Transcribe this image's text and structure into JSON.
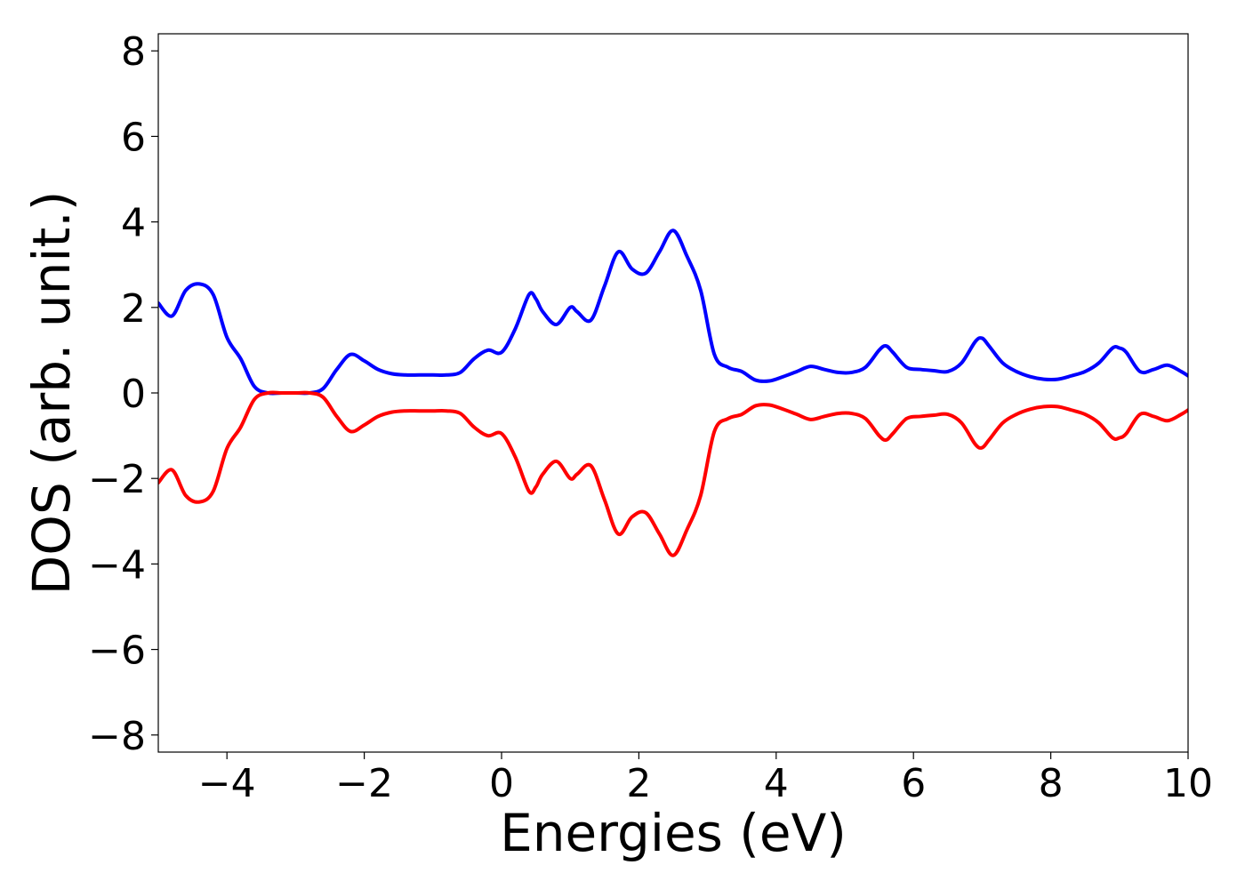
{
  "chart_data": {
    "type": "line",
    "title": "",
    "xlabel": "Energies (eV)",
    "ylabel": "DOS (arb. unit.)",
    "xlim": [
      -5,
      10
    ],
    "ylim": [
      -8.4,
      8.4
    ],
    "xticks": [
      -4,
      -2,
      0,
      2,
      4,
      6,
      8,
      10
    ],
    "xtick_labels": [
      "−4",
      "−2",
      "0",
      "2",
      "4",
      "6",
      "8",
      "10"
    ],
    "yticks": [
      -8,
      -6,
      -4,
      -2,
      0,
      2,
      4,
      6,
      8
    ],
    "ytick_labels": [
      "−8",
      "−6",
      "−4",
      "−2",
      "0",
      "2",
      "4",
      "6",
      "8"
    ],
    "grid": false,
    "legend": "none",
    "x": [
      -5.0,
      -4.8,
      -4.6,
      -4.4,
      -4.2,
      -4.0,
      -3.8,
      -3.6,
      -3.4,
      -3.2,
      -3.0,
      -2.8,
      -2.6,
      -2.4,
      -2.2,
      -2.0,
      -1.8,
      -1.6,
      -1.4,
      -1.2,
      -1.0,
      -0.8,
      -0.6,
      -0.4,
      -0.2,
      0.0,
      0.2,
      0.4,
      0.5,
      0.6,
      0.8,
      1.0,
      1.1,
      1.3,
      1.5,
      1.7,
      1.9,
      2.1,
      2.3,
      2.5,
      2.7,
      2.9,
      3.1,
      3.3,
      3.5,
      3.7,
      3.9,
      4.1,
      4.3,
      4.5,
      4.7,
      4.9,
      5.1,
      5.3,
      5.5,
      5.6,
      5.7,
      5.9,
      6.1,
      6.3,
      6.5,
      6.7,
      6.9,
      7.0,
      7.1,
      7.3,
      7.5,
      7.7,
      7.9,
      8.1,
      8.3,
      8.5,
      8.7,
      8.9,
      9.0,
      9.1,
      9.3,
      9.5,
      9.7,
      9.9,
      10.0
    ],
    "series": [
      {
        "color": "#0000ff",
        "values": [
          2.1,
          1.8,
          2.4,
          2.55,
          2.3,
          1.3,
          0.8,
          0.15,
          0.0,
          0.0,
          0.0,
          0.0,
          0.1,
          0.55,
          0.9,
          0.75,
          0.55,
          0.45,
          0.42,
          0.42,
          0.42,
          0.42,
          0.48,
          0.8,
          1.0,
          0.95,
          1.5,
          2.3,
          2.2,
          1.9,
          1.6,
          2.0,
          1.9,
          1.7,
          2.5,
          3.3,
          2.9,
          2.8,
          3.3,
          3.8,
          3.2,
          2.4,
          0.9,
          0.6,
          0.5,
          0.3,
          0.28,
          0.38,
          0.5,
          0.62,
          0.55,
          0.48,
          0.48,
          0.6,
          1.0,
          1.1,
          0.95,
          0.6,
          0.55,
          0.52,
          0.5,
          0.7,
          1.2,
          1.28,
          1.1,
          0.7,
          0.5,
          0.38,
          0.32,
          0.32,
          0.4,
          0.5,
          0.7,
          1.05,
          1.05,
          0.95,
          0.5,
          0.55,
          0.65,
          0.5,
          0.4
        ]
      },
      {
        "color": "#ff0000",
        "values": [
          -2.1,
          -1.8,
          -2.4,
          -2.55,
          -2.3,
          -1.3,
          -0.8,
          -0.15,
          0.0,
          0.0,
          0.0,
          0.0,
          -0.1,
          -0.55,
          -0.9,
          -0.75,
          -0.55,
          -0.45,
          -0.42,
          -0.42,
          -0.42,
          -0.42,
          -0.48,
          -0.8,
          -1.0,
          -0.95,
          -1.5,
          -2.3,
          -2.2,
          -1.9,
          -1.6,
          -2.0,
          -1.9,
          -1.7,
          -2.5,
          -3.3,
          -2.9,
          -2.8,
          -3.3,
          -3.8,
          -3.2,
          -2.4,
          -0.9,
          -0.6,
          -0.5,
          -0.3,
          -0.28,
          -0.38,
          -0.5,
          -0.62,
          -0.55,
          -0.48,
          -0.48,
          -0.6,
          -1.0,
          -1.1,
          -0.95,
          -0.6,
          -0.55,
          -0.52,
          -0.5,
          -0.7,
          -1.2,
          -1.28,
          -1.1,
          -0.7,
          -0.5,
          -0.38,
          -0.32,
          -0.32,
          -0.4,
          -0.5,
          -0.7,
          -1.05,
          -1.05,
          -0.95,
          -0.5,
          -0.55,
          -0.65,
          -0.5,
          -0.4
        ]
      }
    ]
  }
}
